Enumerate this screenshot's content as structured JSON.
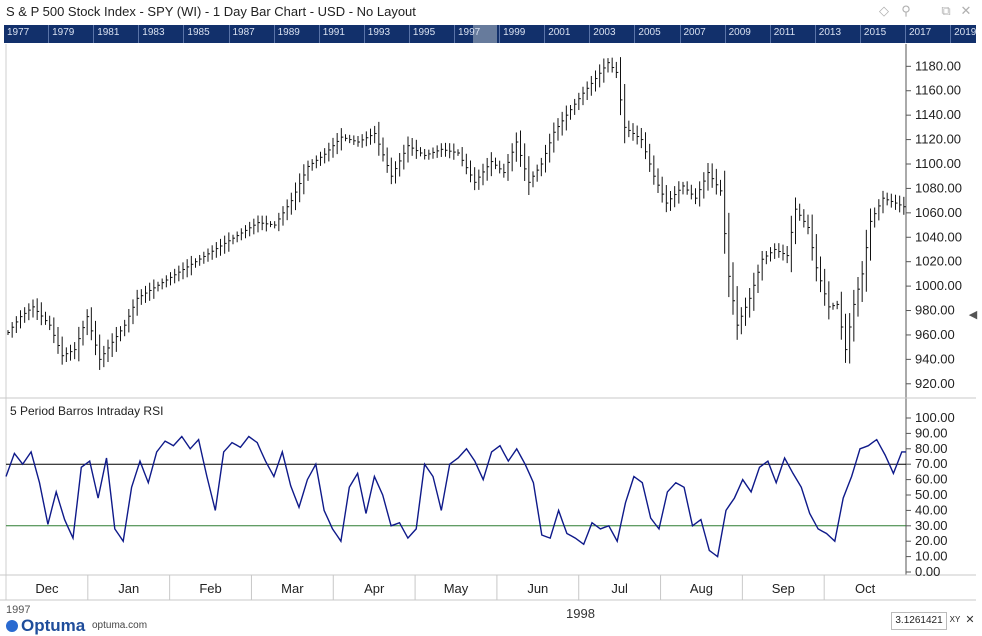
{
  "window": {
    "title": "S & P 500 Stock Index - SPY (WI) - 1 Day Bar Chart - USD - No Layout",
    "controls": [
      "◇",
      "⚲",
      "⧉",
      "✕"
    ]
  },
  "overview": {
    "years": [
      "1977",
      "1979",
      "1981",
      "1983",
      "1985",
      "1987",
      "1989",
      "1991",
      "1993",
      "1995",
      "1997",
      "1999",
      "2001",
      "2003",
      "2005",
      "2007",
      "2009",
      "2011",
      "2013",
      "2015",
      "2017",
      "2019"
    ]
  },
  "footer": {
    "brand": "Optuma",
    "url": "optuma.com",
    "scale_value": "3.1261421",
    "xy_label": "XY",
    "close_label": "✕",
    "year_label": "1998",
    "prev_year_label": "1997"
  },
  "chart_data": [
    {
      "type": "bar",
      "title": "",
      "ylim": [
        910,
        1195
      ],
      "yticks": [
        "1180.00",
        "1160.00",
        "1140.00",
        "1120.00",
        "1100.00",
        "1080.00",
        "1060.00",
        "1040.00",
        "1020.00",
        "1000.00",
        "980.00",
        "960.00",
        "940.00",
        "920.00"
      ],
      "months": [
        "Dec",
        "Jan",
        "Feb",
        "Mar",
        "Apr",
        "May",
        "Jun",
        "Jul",
        "Aug",
        "Sep",
        "Oct"
      ],
      "keypoints": [
        [
          0,
          962
        ],
        [
          3,
          975
        ],
        [
          6,
          983
        ],
        [
          10,
          968
        ],
        [
          13,
          943
        ],
        [
          16,
          948
        ],
        [
          19,
          975
        ],
        [
          22,
          940
        ],
        [
          25,
          954
        ],
        [
          28,
          968
        ],
        [
          31,
          990
        ],
        [
          38,
          1005
        ],
        [
          45,
          1020
        ],
        [
          52,
          1035
        ],
        [
          60,
          1052
        ],
        [
          64,
          1050
        ],
        [
          68,
          1070
        ],
        [
          72,
          1098
        ],
        [
          76,
          1108
        ],
        [
          80,
          1122
        ],
        [
          84,
          1118
        ],
        [
          88,
          1125
        ],
        [
          92,
          1090
        ],
        [
          96,
          1115
        ],
        [
          100,
          1107
        ],
        [
          104,
          1112
        ],
        [
          108,
          1109
        ],
        [
          112,
          1085
        ],
        [
          116,
          1102
        ],
        [
          119,
          1093
        ],
        [
          122,
          1118
        ],
        [
          125,
          1085
        ],
        [
          128,
          1100
        ],
        [
          131,
          1126
        ],
        [
          134,
          1140
        ],
        [
          138,
          1158
        ],
        [
          141,
          1170
        ],
        [
          144,
          1183
        ],
        [
          146,
          1175
        ],
        [
          148,
          1130
        ],
        [
          152,
          1120
        ],
        [
          155,
          1090
        ],
        [
          158,
          1068
        ],
        [
          162,
          1082
        ],
        [
          165,
          1072
        ],
        [
          168,
          1093
        ],
        [
          171,
          1078
        ],
        [
          173,
          1008
        ],
        [
          175,
          968
        ],
        [
          178,
          990
        ],
        [
          181,
          1022
        ],
        [
          184,
          1030
        ],
        [
          187,
          1025
        ],
        [
          189,
          1063
        ],
        [
          192,
          1048
        ],
        [
          194,
          1015
        ],
        [
          197,
          983
        ],
        [
          199,
          985
        ],
        [
          201,
          948
        ],
        [
          203,
          985
        ],
        [
          205,
          1010
        ],
        [
          207,
          1053
        ],
        [
          210,
          1072
        ],
        [
          213,
          1068
        ],
        [
          215,
          1065
        ]
      ],
      "bar_count": 216
    },
    {
      "type": "line",
      "title": "5 Period Barros Intraday RSI",
      "ylim": [
        0,
        100
      ],
      "yticks": [
        "100.00",
        "90.00",
        "80.00",
        "70.00",
        "60.00",
        "50.00",
        "40.00",
        "30.00",
        "20.00",
        "10.00",
        "0.00"
      ],
      "reference_lines": [
        {
          "value": 70,
          "color": "#000000"
        },
        {
          "value": 30,
          "color": "#2e7d32"
        }
      ],
      "keypoints": [
        [
          0,
          62
        ],
        [
          2,
          77
        ],
        [
          4,
          70
        ],
        [
          6,
          78
        ],
        [
          8,
          58
        ],
        [
          10,
          31
        ],
        [
          12,
          52
        ],
        [
          14,
          34
        ],
        [
          16,
          22
        ],
        [
          18,
          68
        ],
        [
          20,
          72
        ],
        [
          22,
          48
        ],
        [
          24,
          74
        ],
        [
          26,
          28
        ],
        [
          28,
          20
        ],
        [
          30,
          55
        ],
        [
          32,
          72
        ],
        [
          34,
          58
        ],
        [
          36,
          78
        ],
        [
          38,
          85
        ],
        [
          40,
          82
        ],
        [
          42,
          88
        ],
        [
          44,
          80
        ],
        [
          46,
          86
        ],
        [
          48,
          62
        ],
        [
          50,
          40
        ],
        [
          52,
          78
        ],
        [
          54,
          84
        ],
        [
          56,
          81
        ],
        [
          58,
          88
        ],
        [
          60,
          84
        ],
        [
          62,
          72
        ],
        [
          64,
          62
        ],
        [
          66,
          78
        ],
        [
          68,
          56
        ],
        [
          70,
          42
        ],
        [
          72,
          60
        ],
        [
          74,
          70
        ],
        [
          76,
          40
        ],
        [
          78,
          28
        ],
        [
          80,
          20
        ],
        [
          82,
          55
        ],
        [
          84,
          64
        ],
        [
          86,
          38
        ],
        [
          88,
          62
        ],
        [
          90,
          50
        ],
        [
          92,
          30
        ],
        [
          94,
          32
        ],
        [
          96,
          22
        ],
        [
          98,
          28
        ],
        [
          100,
          70
        ],
        [
          102,
          62
        ],
        [
          104,
          40
        ],
        [
          106,
          70
        ],
        [
          108,
          74
        ],
        [
          110,
          80
        ],
        [
          112,
          72
        ],
        [
          114,
          60
        ],
        [
          116,
          78
        ],
        [
          118,
          82
        ],
        [
          120,
          72
        ],
        [
          122,
          80
        ],
        [
          124,
          70
        ],
        [
          126,
          58
        ],
        [
          128,
          24
        ],
        [
          130,
          22
        ],
        [
          132,
          40
        ],
        [
          134,
          25
        ],
        [
          136,
          22
        ],
        [
          138,
          18
        ],
        [
          140,
          32
        ],
        [
          142,
          28
        ],
        [
          144,
          30
        ],
        [
          146,
          20
        ],
        [
          148,
          45
        ],
        [
          150,
          62
        ],
        [
          152,
          58
        ],
        [
          154,
          35
        ],
        [
          156,
          28
        ],
        [
          158,
          52
        ],
        [
          160,
          58
        ],
        [
          162,
          55
        ],
        [
          164,
          30
        ],
        [
          166,
          34
        ],
        [
          168,
          14
        ],
        [
          170,
          10
        ],
        [
          172,
          40
        ],
        [
          174,
          48
        ],
        [
          176,
          60
        ],
        [
          178,
          52
        ],
        [
          180,
          68
        ],
        [
          182,
          72
        ],
        [
          184,
          58
        ],
        [
          186,
          74
        ],
        [
          188,
          64
        ],
        [
          190,
          55
        ],
        [
          192,
          38
        ],
        [
          194,
          28
        ],
        [
          196,
          25
        ],
        [
          198,
          20
        ],
        [
          200,
          48
        ],
        [
          202,
          62
        ],
        [
          204,
          80
        ],
        [
          206,
          82
        ],
        [
          208,
          86
        ],
        [
          210,
          76
        ],
        [
          212,
          64
        ],
        [
          214,
          78
        ]
      ],
      "point_count": 216
    }
  ]
}
